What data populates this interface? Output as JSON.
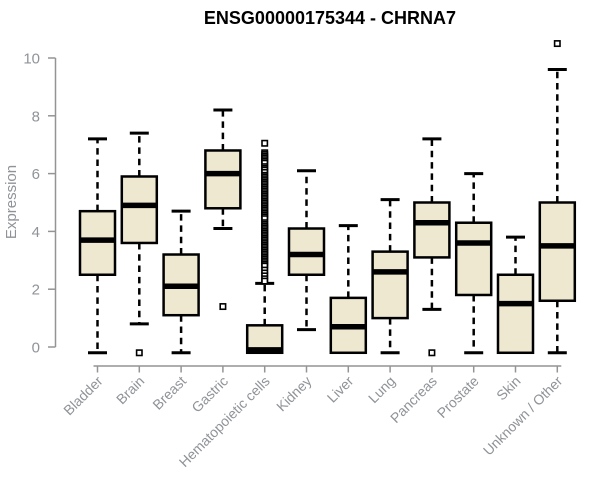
{
  "chart_data": {
    "type": "box",
    "title": "ENSG00000175344 - CHRNA7",
    "ylabel": "Expression",
    "xlabel": "",
    "yticks": [
      0,
      2,
      4,
      6,
      8,
      10
    ],
    "ylim": [
      -0.6,
      10.8
    ],
    "grid": false,
    "legend": null,
    "categories": [
      "Bladder",
      "Brain",
      "Breast",
      "Gastric",
      "Hematopoietic cells",
      "Kidney",
      "Liver",
      "Lung",
      "Pancreas",
      "Prostate",
      "Skin",
      "Unknown / Other"
    ],
    "series": [
      {
        "name": "Bladder",
        "whisker_low": -0.2,
        "q1": 2.5,
        "median": 3.7,
        "q3": 4.7,
        "whisker_high": 7.2,
        "outliers": []
      },
      {
        "name": "Brain",
        "whisker_low": 0.8,
        "q1": 3.6,
        "median": 4.9,
        "q3": 5.9,
        "whisker_high": 7.4,
        "outliers": [
          -0.2
        ]
      },
      {
        "name": "Breast",
        "whisker_low": -0.2,
        "q1": 1.1,
        "median": 2.1,
        "q3": 3.2,
        "whisker_high": 4.7,
        "outliers": []
      },
      {
        "name": "Gastric",
        "whisker_low": 4.1,
        "q1": 4.8,
        "median": 6.0,
        "q3": 6.8,
        "whisker_high": 8.2,
        "outliers": [
          1.4
        ]
      },
      {
        "name": "Hematopoietic cells",
        "whisker_low": -0.2,
        "q1": -0.2,
        "median": -0.1,
        "q3": 0.75,
        "whisker_high": 2.2,
        "outliers": [
          7.05,
          6.72,
          6.66,
          6.6,
          6.54,
          6.48,
          6.42,
          6.36,
          6.24,
          6.18,
          6.12,
          6.04,
          5.94,
          5.88,
          5.82,
          5.76,
          5.7,
          5.64,
          5.58,
          5.52,
          5.46,
          5.4,
          5.34,
          5.28,
          5.22,
          5.16,
          5.1,
          5.04,
          4.98,
          4.92,
          4.86,
          4.8,
          4.74,
          4.68,
          4.62,
          4.56,
          4.5,
          4.44,
          4.3,
          4.24,
          4.18,
          4.12,
          4.06,
          4.0,
          3.94,
          3.88,
          3.82,
          3.76,
          3.7,
          3.64,
          3.58,
          3.52,
          3.46,
          3.4,
          3.34,
          3.28,
          3.22,
          3.16,
          3.1,
          3.04,
          2.98,
          2.92,
          2.86,
          2.8,
          2.66,
          2.56,
          2.46,
          2.36,
          2.28
        ]
      },
      {
        "name": "Kidney",
        "whisker_low": 0.6,
        "q1": 2.5,
        "median": 3.2,
        "q3": 4.1,
        "whisker_high": 6.1,
        "outliers": []
      },
      {
        "name": "Liver",
        "whisker_low": -0.2,
        "q1": -0.2,
        "median": 0.7,
        "q3": 1.7,
        "whisker_high": 4.2,
        "outliers": []
      },
      {
        "name": "Lung",
        "whisker_low": -0.2,
        "q1": 1.0,
        "median": 2.6,
        "q3": 3.3,
        "whisker_high": 5.1,
        "outliers": []
      },
      {
        "name": "Pancreas",
        "whisker_low": 1.3,
        "q1": 3.1,
        "median": 4.3,
        "q3": 5.0,
        "whisker_high": 7.2,
        "outliers": [
          -0.2
        ]
      },
      {
        "name": "Prostate",
        "whisker_low": -0.2,
        "q1": 1.8,
        "median": 3.6,
        "q3": 4.3,
        "whisker_high": 6.0,
        "outliers": []
      },
      {
        "name": "Skin",
        "whisker_low": -0.2,
        "q1": -0.2,
        "median": 1.5,
        "q3": 2.5,
        "whisker_high": 3.8,
        "outliers": []
      },
      {
        "name": "Unknown / Other",
        "whisker_low": -0.2,
        "q1": 1.6,
        "median": 3.5,
        "q3": 5.0,
        "whisker_high": 9.6,
        "outliers": [
          10.5
        ]
      }
    ],
    "colors": {
      "background": "#ffffff",
      "box_fill": "#EDE8CF",
      "box_border": "#000000",
      "median": "#000000",
      "whisker": "#000000",
      "outlier_stroke": "#000000",
      "outlier_fill": "#ffffff",
      "axis_line": "#949494",
      "tick_label": "#8F9398",
      "title": "#000000"
    }
  }
}
